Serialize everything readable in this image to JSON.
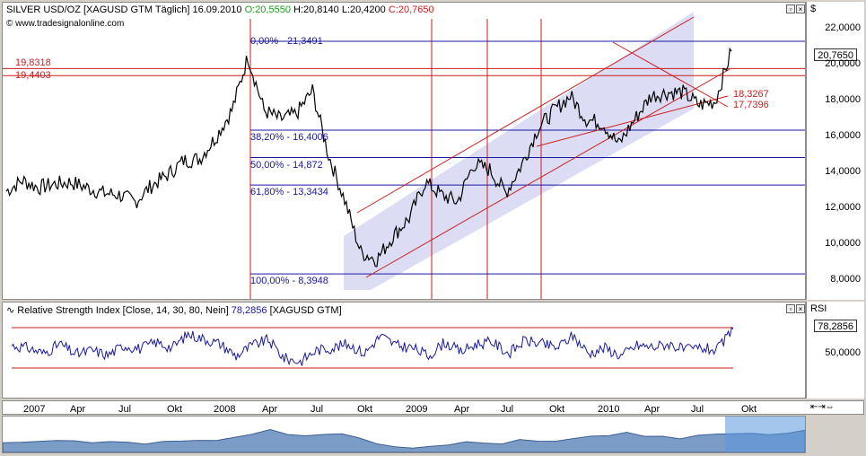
{
  "main_chart": {
    "instrument": "SILVER USD/OZ [XAGUSD GTM",
    "period": "Täglich]",
    "date": "16.09.2010",
    "open": "O:20,5550",
    "high": "H:20,8140",
    "low": "L:20,4200",
    "close": "C:20,7650",
    "source": "www.tradesignalonline.com",
    "currency_label": "$",
    "last_price_tag": "20,7650",
    "y_ticks": [
      "22,0000",
      "20,0000",
      "18,0000",
      "16,0000",
      "14,0000",
      "12,0000",
      "10,0000",
      "8,0000"
    ],
    "fib_levels": [
      {
        "label": "0,00% - 21,3491",
        "value": 21.3491
      },
      {
        "label": "38,20% - 16,4006",
        "value": 16.4006
      },
      {
        "label": "50,00% - 14,872",
        "value": 14.872
      },
      {
        "label": "61,80% - 13,3434",
        "value": 13.3434
      },
      {
        "label": "100,00% - 8,3948",
        "value": 8.3948
      }
    ],
    "hlines_red": [
      {
        "label": "19,8318",
        "value": 19.8318
      },
      {
        "label": "19,4403",
        "value": 19.4403
      }
    ],
    "trend_labels": [
      {
        "label": "18,3267",
        "value": 18.3267
      },
      {
        "label": "17,7396",
        "value": 17.7396
      }
    ],
    "accent_blue": "#1818a0",
    "accent_red": "#cc1e1e"
  },
  "rsi_panel": {
    "title": "Relative Strength Index [Close, 14, 30, 80, Nein]",
    "value": "78,2856",
    "instrument": "[XAGUSD GTM]",
    "axis_label": "RSI",
    "value_tag": "78,2856",
    "y_tick": "50,0000"
  },
  "time_axis": {
    "labels": [
      "2007",
      "Apr",
      "Jul",
      "Okt",
      "2008",
      "Apr",
      "Jul",
      "Okt",
      "2009",
      "Apr",
      "Jul",
      "Okt",
      "2010",
      "Apr",
      "Jul",
      "Okt"
    ]
  },
  "chart_data": [
    {
      "type": "line",
      "title": "SILVER USD/OZ [XAGUSD GTM",
      "x": [
        "2006-12",
        "2007-01",
        "2007-02",
        "2007-03",
        "2007-04",
        "2007-05",
        "2007-06",
        "2007-07",
        "2007-08",
        "2007-09",
        "2007-10",
        "2007-11",
        "2007-12",
        "2008-01",
        "2008-02",
        "2008-03",
        "2008-04",
        "2008-05",
        "2008-06",
        "2008-07",
        "2008-08",
        "2008-09",
        "2008-10",
        "2008-11",
        "2008-12",
        "2009-01",
        "2009-02",
        "2009-03",
        "2009-04",
        "2009-05",
        "2009-06",
        "2009-07",
        "2009-08",
        "2009-09",
        "2009-10",
        "2009-11",
        "2009-12",
        "2010-01",
        "2010-02",
        "2010-03",
        "2010-04",
        "2010-05",
        "2010-06",
        "2010-07",
        "2010-08",
        "2010-09"
      ],
      "series": [
        {
          "values": [
            13.0,
            13.6,
            13.2,
            13.4,
            13.5,
            13.2,
            12.9,
            12.8,
            12.4,
            13.3,
            13.9,
            14.7,
            14.8,
            16.0,
            17.5,
            20.5,
            17.5,
            17.0,
            17.3,
            18.6,
            15.0,
            12.5,
            9.6,
            9.2,
            10.5,
            11.5,
            13.5,
            12.8,
            12.4,
            14.5,
            14.2,
            12.9,
            14.5,
            16.5,
            17.5,
            18.3,
            17.0,
            16.8,
            15.6,
            17.0,
            18.3,
            18.5,
            18.5,
            17.8,
            18.0,
            20.8
          ]
        }
      ],
      "ylim": [
        7,
        23.5
      ]
    },
    {
      "type": "line",
      "title": "Relative Strength Index [Close, 14, 30, 80, Nein]",
      "series": [
        {
          "values": [
            58,
            55,
            48,
            60,
            47,
            52,
            46,
            58,
            54,
            62,
            55,
            72,
            66,
            60,
            45,
            58,
            65,
            42,
            38,
            52,
            55,
            60,
            48,
            70,
            58,
            55,
            45,
            62,
            50,
            60,
            62,
            48,
            64,
            60,
            55,
            70,
            48,
            55,
            45,
            58,
            56,
            60,
            52,
            55,
            52,
            78
          ]
        }
      ],
      "ylim": [
        0,
        100
      ],
      "thresholds": [
        30,
        80
      ]
    }
  ]
}
